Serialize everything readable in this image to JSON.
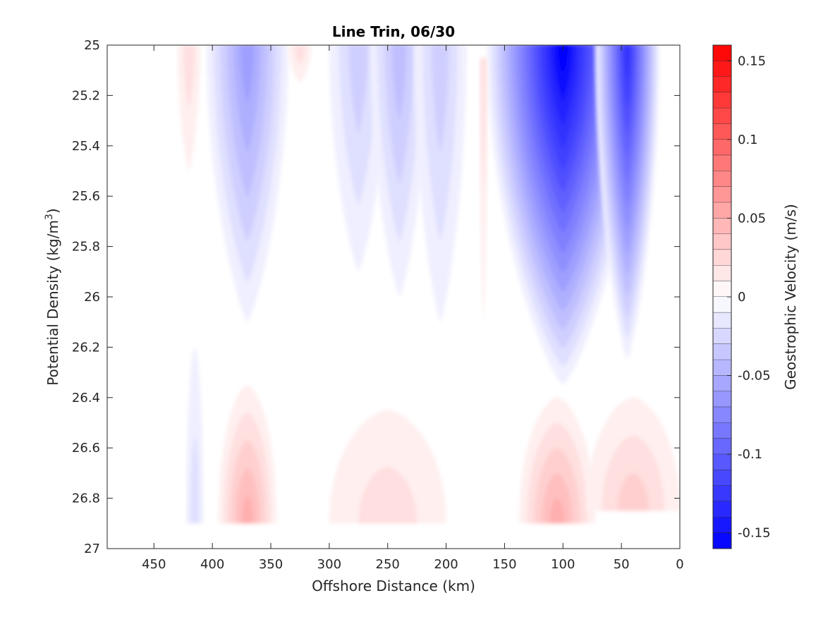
{
  "chart_data": {
    "type": "heatmap",
    "subtype": "filled-contour",
    "title": "Line Trin, 06/30",
    "xlabel": "Offshore Distance (km)",
    "ylabel_main": "Potential Density (kg/m",
    "ylabel_sup": "3",
    "ylabel_close": ")",
    "colorbar_label": "Geostrophic Velocity (m/s)",
    "xlim": [
      490,
      0
    ],
    "x_reversed": true,
    "ylim": [
      25,
      27
    ],
    "y_reversed": true,
    "x_ticks": [
      450,
      400,
      350,
      300,
      250,
      200,
      150,
      100,
      50,
      0
    ],
    "x_tick_labels": [
      "450",
      "400",
      "350",
      "300",
      "250",
      "200",
      "150",
      "100",
      "50",
      "0"
    ],
    "y_ticks": [
      25,
      25.2,
      25.4,
      25.6,
      25.8,
      26,
      26.2,
      26.4,
      26.6,
      26.8,
      27
    ],
    "y_tick_labels": [
      "25",
      "25.2",
      "25.4",
      "25.6",
      "25.8",
      "26",
      "26.2",
      "26.4",
      "26.6",
      "26.8",
      "27"
    ],
    "colorbar": {
      "clim": [
        -0.16,
        0.16
      ],
      "step": 0.01,
      "ticks": [
        0.15,
        0.1,
        0.05,
        0,
        -0.05,
        -0.1,
        -0.15
      ],
      "tick_labels": [
        "0.15",
        "0.1",
        "0.05",
        "0",
        "-0.05",
        "-0.1",
        "-0.15"
      ],
      "colormap": "blue-white-red",
      "negative_color": "#0000ff",
      "positive_color": "#ff0000",
      "zero_color": "#ffffff"
    },
    "features": [
      {
        "kind": "jet",
        "sign": "negative",
        "x_center": 100,
        "x_span": [
          140,
          10
        ],
        "sigma_range": [
          25,
          26.35
        ],
        "peak_velocity": -0.16
      },
      {
        "kind": "jet",
        "sign": "negative",
        "x_center": 45,
        "x_span": [
          70,
          15
        ],
        "sigma_range": [
          25,
          26.25
        ],
        "peak_velocity": -0.13
      },
      {
        "kind": "band",
        "sign": "negative",
        "x_center": 370,
        "x_span": [
          400,
          330
        ],
        "sigma_range": [
          25,
          26.1
        ],
        "peak_velocity": -0.06
      },
      {
        "kind": "band",
        "sign": "negative",
        "x_center": 275,
        "x_span": [
          300,
          250
        ],
        "sigma_range": [
          25,
          25.9
        ],
        "peak_velocity": -0.03
      },
      {
        "kind": "band",
        "sign": "negative",
        "x_center": 240,
        "x_span": [
          265,
          215
        ],
        "sigma_range": [
          25,
          26.0
        ],
        "peak_velocity": -0.04
      },
      {
        "kind": "band",
        "sign": "negative",
        "x_center": 205,
        "x_span": [
          230,
          185
        ],
        "sigma_range": [
          25,
          26.1
        ],
        "peak_velocity": -0.025
      },
      {
        "kind": "patch",
        "sign": "negative",
        "x_center": 415,
        "x_span": [
          425,
          410
        ],
        "sigma_range": [
          26.2,
          26.9
        ],
        "peak_velocity": -0.012
      },
      {
        "kind": "patch",
        "sign": "positive",
        "x_center": 370,
        "x_span": [
          395,
          345
        ],
        "sigma_range": [
          26.35,
          26.9
        ],
        "peak_velocity": 0.045
      },
      {
        "kind": "patch",
        "sign": "positive",
        "x_center": 105,
        "x_span": [
          135,
          70
        ],
        "sigma_range": [
          26.4,
          26.9
        ],
        "peak_velocity": 0.05
      },
      {
        "kind": "patch",
        "sign": "positive",
        "x_center": 40,
        "x_span": [
          90,
          10
        ],
        "sigma_range": [
          26.4,
          26.85
        ],
        "peak_velocity": 0.025
      },
      {
        "kind": "patch",
        "sign": "positive",
        "x_center": 250,
        "x_span": [
          290,
          190
        ],
        "sigma_range": [
          26.45,
          26.9
        ],
        "peak_velocity": 0.015
      },
      {
        "kind": "patch",
        "sign": "positive",
        "x_center": 420,
        "x_span": [
          430,
          410
        ],
        "sigma_range": [
          25,
          25.5
        ],
        "peak_velocity": 0.012
      },
      {
        "kind": "patch",
        "sign": "positive",
        "x_center": 325,
        "x_span": [
          335,
          315
        ],
        "sigma_range": [
          25,
          25.15
        ],
        "peak_velocity": 0.01
      },
      {
        "kind": "patch",
        "sign": "positive",
        "x_center": 168,
        "x_span": [
          172,
          164
        ],
        "sigma_range": [
          25.05,
          26.1
        ],
        "peak_velocity": 0.012
      }
    ]
  }
}
